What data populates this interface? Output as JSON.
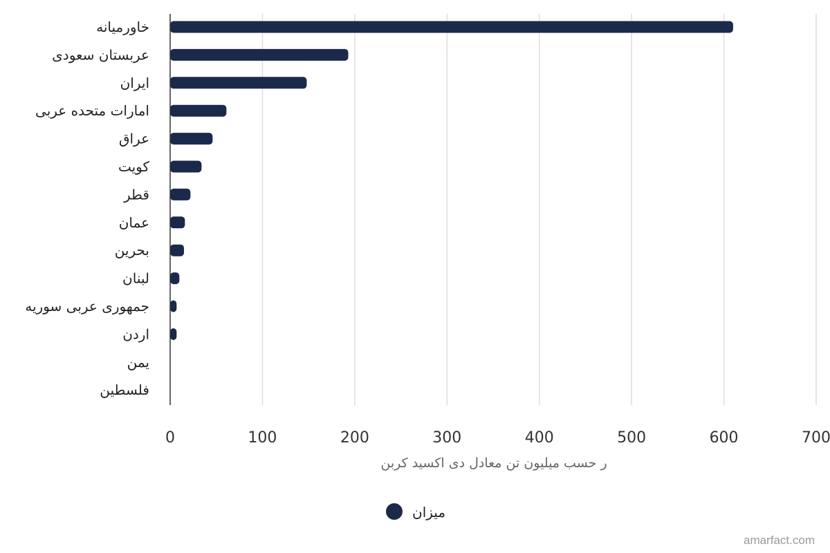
{
  "chart_data": {
    "type": "bar",
    "orientation": "horizontal",
    "categories": [
      "خاورمیانه",
      "عربستان سعودی",
      "ایران",
      "امارات متحده عربی",
      "عراق",
      "کویت",
      "قطر",
      "عمان",
      "بحرین",
      "لبنان",
      "جمهوری عربی سوریه",
      "اردن",
      "یمن",
      "فلسطین"
    ],
    "series": [
      {
        "name": "میزان",
        "color": "#1b2a4a",
        "values": [
          610,
          193,
          148,
          61,
          46,
          34,
          22,
          16,
          15,
          10,
          7,
          7,
          0,
          0
        ]
      }
    ],
    "xlabel": "ر حسب میلیون تن معادل دی اکسید کربن",
    "xlim": [
      0,
      700
    ],
    "xticks": [
      0,
      100,
      200,
      300,
      400,
      500,
      600,
      700
    ],
    "grid": true,
    "legend_position": "bottom"
  },
  "credit": "amarfact.com"
}
